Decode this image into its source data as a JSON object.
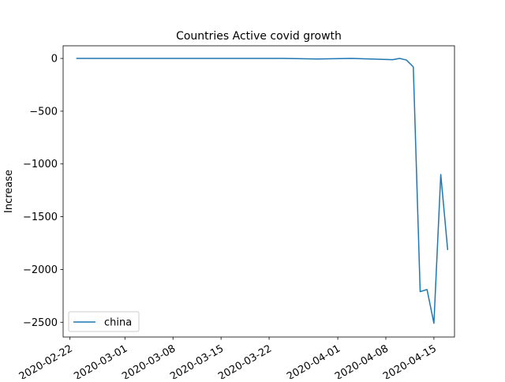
{
  "chart_data": {
    "type": "line",
    "title": "Countries Active covid growth",
    "xlabel": "",
    "ylabel": "Increase",
    "x_type": "date",
    "xlim": [
      "2020-02-21",
      "2020-04-18"
    ],
    "ylim": [
      -2640,
      120
    ],
    "x_ticks": [
      {
        "date": "2020-02-22",
        "label": "2020-02-22"
      },
      {
        "date": "2020-03-01",
        "label": "2020-03-01"
      },
      {
        "date": "2020-03-08",
        "label": "2020-03-08"
      },
      {
        "date": "2020-03-15",
        "label": "2020-03-15"
      },
      {
        "date": "2020-03-22",
        "label": "2020-03-22"
      },
      {
        "date": "2020-04-01",
        "label": "2020-04-01"
      },
      {
        "date": "2020-04-08",
        "label": "2020-04-08"
      },
      {
        "date": "2020-04-15",
        "label": "2020-04-15"
      }
    ],
    "y_ticks": [
      {
        "value": 0,
        "label": "0"
      },
      {
        "value": -500,
        "label": "−500"
      },
      {
        "value": -1000,
        "label": "−1000"
      },
      {
        "value": -1500,
        "label": "−1500"
      },
      {
        "value": -2000,
        "label": "−2000"
      },
      {
        "value": -2500,
        "label": "−2500"
      }
    ],
    "grid": false,
    "legend_position": "lower-left",
    "series": [
      {
        "name": "china",
        "color": "#1f77b4",
        "points": [
          {
            "x": "2020-02-23",
            "y": 0
          },
          {
            "x": "2020-03-24",
            "y": 0
          },
          {
            "x": "2020-03-29",
            "y": -5
          },
          {
            "x": "2020-04-03",
            "y": 0
          },
          {
            "x": "2020-04-09",
            "y": -12
          },
          {
            "x": "2020-04-10",
            "y": 0
          },
          {
            "x": "2020-04-11",
            "y": -15
          },
          {
            "x": "2020-04-12",
            "y": -80
          },
          {
            "x": "2020-04-13",
            "y": -2210
          },
          {
            "x": "2020-04-14",
            "y": -2190
          },
          {
            "x": "2020-04-15",
            "y": -2510
          },
          {
            "x": "2020-04-16",
            "y": -1100
          },
          {
            "x": "2020-04-17",
            "y": -1810
          }
        ]
      }
    ]
  }
}
